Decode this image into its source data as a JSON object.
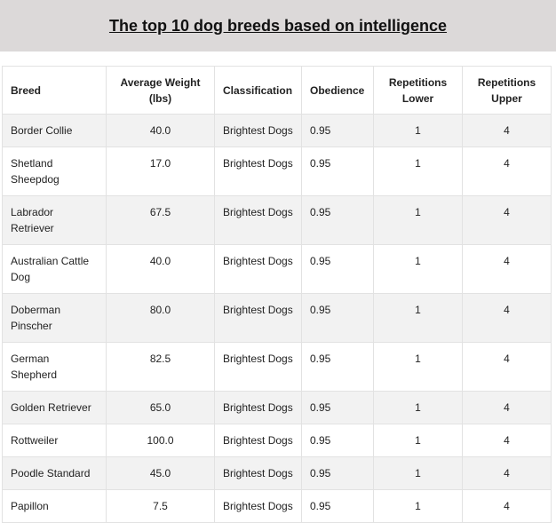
{
  "header": {
    "title": "The top 10 dog breeds based on intelligence"
  },
  "table": {
    "columns": [
      "Breed",
      "Average Weight (lbs)",
      "Classification",
      "Obedience",
      "Repetitions Lower",
      "Repetitions Upper"
    ],
    "rows": [
      [
        "Border Collie",
        "40.0",
        "Brightest Dogs",
        "0.95",
        "1",
        "4"
      ],
      [
        "Shetland Sheepdog",
        "17.0",
        "Brightest Dogs",
        "0.95",
        "1",
        "4"
      ],
      [
        "Labrador Retriever",
        "67.5",
        "Brightest Dogs",
        "0.95",
        "1",
        "4"
      ],
      [
        "Australian Cattle Dog",
        "40.0",
        "Brightest Dogs",
        "0.95",
        "1",
        "4"
      ],
      [
        "Doberman Pinscher",
        "80.0",
        "Brightest Dogs",
        "0.95",
        "1",
        "4"
      ],
      [
        "German Shepherd",
        "82.5",
        "Brightest Dogs",
        "0.95",
        "1",
        "4"
      ],
      [
        "Golden Retriever",
        "65.0",
        "Brightest Dogs",
        "0.95",
        "1",
        "4"
      ],
      [
        "Rottweiler",
        "100.0",
        "Brightest Dogs",
        "0.95",
        "1",
        "4"
      ],
      [
        "Poodle Standard",
        "45.0",
        "Brightest Dogs",
        "0.95",
        "1",
        "4"
      ],
      [
        "Papillon",
        "7.5",
        "Brightest Dogs",
        "0.95",
        "1",
        "4"
      ]
    ]
  }
}
